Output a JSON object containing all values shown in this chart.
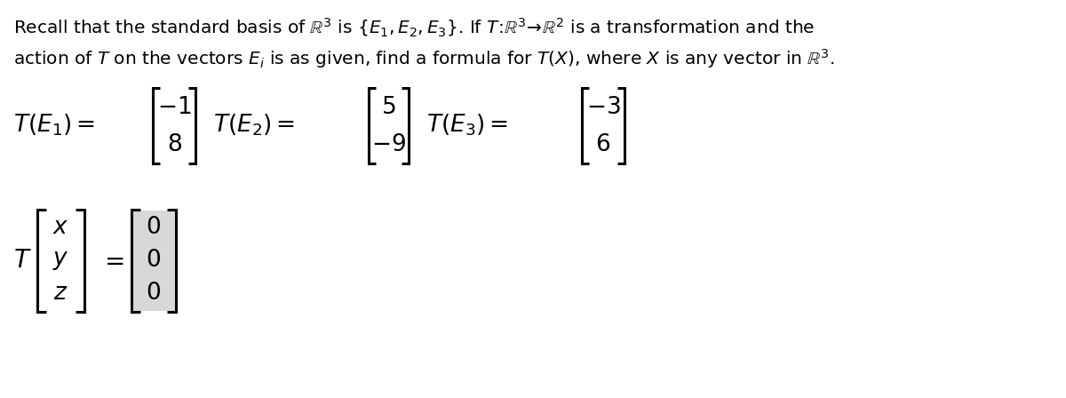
{
  "background_color": "#ffffff",
  "figsize": [
    12.0,
    4.48
  ],
  "dpi": 100,
  "text_color": "#000000",
  "font_size_body": 14.5,
  "font_size_matrix": 19,
  "line1": "Recall that the standard basis of $\\mathbb{R}^3$ is $\\{E_1, E_2, E_3\\}$. If $T\\!:\\!\\mathbb{R}^3\\!\\rightarrow\\!\\mathbb{R}^2$ is a transformation and the",
  "line2": "action of $T$ on the vectors $E_i$ is as given, find a formula for $T(X)$, where $X$ is any vector in $\\mathbb{R}^3$.",
  "bracket_lw": 2.2,
  "bracket_tick": 8,
  "shaded_color": "#d8d8d8"
}
